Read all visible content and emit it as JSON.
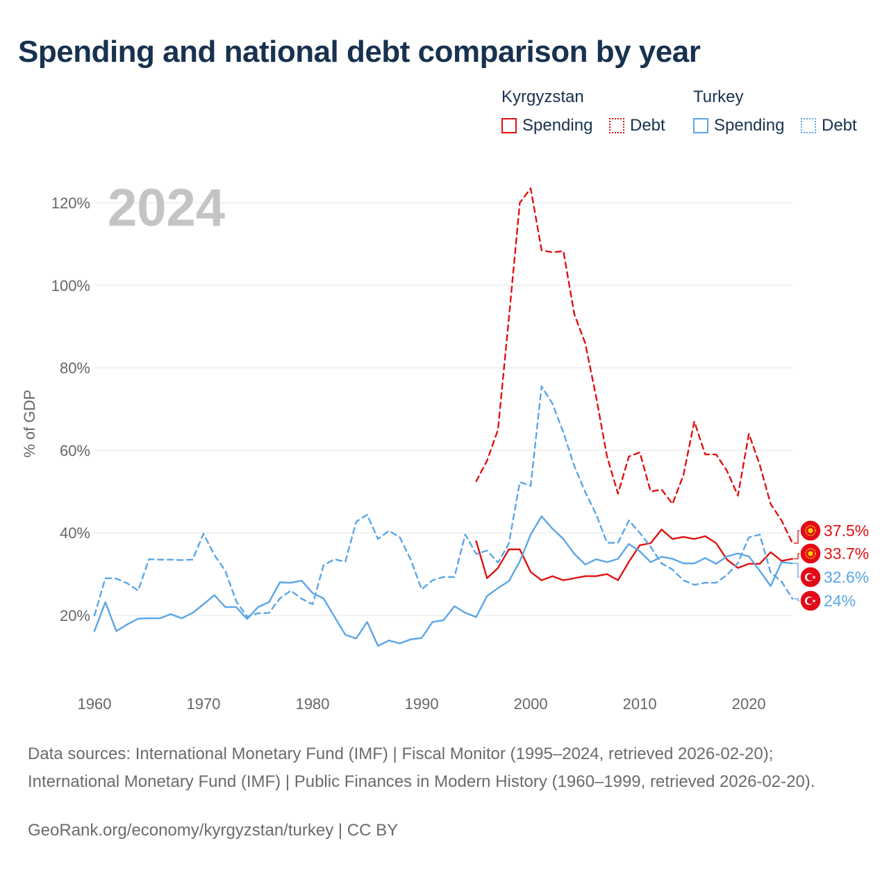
{
  "title": "Spending and national debt comparison by year",
  "legend": {
    "groups": [
      {
        "country": "Kyrgyzstan",
        "items": [
          {
            "label": "Spending",
            "color": "#e01010",
            "style": "solid"
          },
          {
            "label": "Debt",
            "color": "#e01010",
            "style": "dotted"
          }
        ]
      },
      {
        "country": "Turkey",
        "items": [
          {
            "label": "Spending",
            "color": "#5aa5e6",
            "style": "solid"
          },
          {
            "label": "Debt",
            "color": "#5aa5e6",
            "style": "dotted"
          }
        ]
      }
    ]
  },
  "footer": {
    "sources": "Data sources: International Monetary Fund (IMF) | Fiscal Monitor (1995–2024, retrieved 2026-02-20); International Monetary Fund (IMF) | Public Finances in Modern History (1960–1999, retrieved 2026-02-20).",
    "link": "GeoRank.org/economy/kyrgyzstan/turkey | CC BY"
  },
  "chart_data": {
    "type": "line",
    "year_watermark": "2024",
    "ylabel": "% of GDP",
    "xlim": [
      1960,
      2024
    ],
    "ylim": [
      5,
      125
    ],
    "x_ticks": [
      1960,
      1970,
      1980,
      1990,
      2000,
      2010,
      2020
    ],
    "y_ticks": [
      20,
      40,
      60,
      80,
      100,
      120
    ],
    "y_tick_labels": [
      "20%",
      "40%",
      "60%",
      "80%",
      "100%",
      "120%"
    ],
    "series": [
      {
        "name": "Kyrgyzstan Debt",
        "country": "Kyrgyzstan",
        "metric": "Debt",
        "color": "#e01010",
        "dash": true,
        "start_year": 1995,
        "values": [
          52.5,
          57.5,
          65,
          92,
          120,
          123.5,
          108.5,
          108,
          108.3,
          93,
          86,
          73,
          58.5,
          49.5,
          58.5,
          59.5,
          50,
          50.5,
          47,
          54,
          67,
          59,
          59,
          55,
          49,
          64,
          56.5,
          47,
          43,
          37.5
        ],
        "end_label": "37.5%",
        "flag": "kg"
      },
      {
        "name": "Kyrgyzstan Spending",
        "country": "Kyrgyzstan",
        "metric": "Spending",
        "color": "#e01010",
        "dash": false,
        "start_year": 1995,
        "values": [
          38,
          29,
          31.5,
          36,
          36,
          30.5,
          28.5,
          29.5,
          28.5,
          29,
          29.5,
          29.5,
          30,
          28.5,
          33,
          37,
          37.5,
          40.8,
          38.5,
          39,
          38.5,
          39.2,
          37.5,
          33.5,
          31.5,
          32.5,
          32.5,
          35.3,
          33.2,
          33.7
        ],
        "end_label": "33.7%",
        "flag": "kg"
      },
      {
        "name": "Turkey Spending",
        "country": "Turkey",
        "metric": "Spending",
        "color": "#5aa5e6",
        "dash": false,
        "start_year": 1960,
        "values": [
          16.2,
          23.2,
          16.2,
          17.8,
          19.2,
          19.3,
          19.3,
          20.3,
          19.3,
          20.6,
          22.7,
          24.9,
          22,
          22,
          19.1,
          22,
          23.2,
          28,
          27.9,
          28.4,
          25.4,
          24.1,
          19.7,
          15.3,
          14.4,
          18.4,
          12.6,
          13.9,
          13.2,
          14.2,
          14.5,
          18.4,
          18.8,
          22.2,
          20.6,
          19.6,
          24.7,
          26.6,
          28.3,
          33.1,
          39.6,
          44,
          41,
          38.5,
          34.9,
          32.3,
          33.6,
          32.9,
          33.7,
          37.3,
          35.5,
          32.9,
          34.2,
          33.7,
          32.6,
          32.6,
          33.9,
          32.5,
          34.3,
          35,
          34.3,
          30.8,
          27.1,
          32.9,
          32.6
        ],
        "end_label": "32.6%",
        "flag": "tr"
      },
      {
        "name": "Turkey Debt",
        "country": "Turkey",
        "metric": "Debt",
        "color": "#5aa5e6",
        "dash": true,
        "start_year": 1960,
        "values": [
          20,
          29,
          28.9,
          27.8,
          26,
          33.6,
          33.5,
          33.5,
          33.4,
          33.5,
          39.8,
          34.6,
          30.8,
          23.4,
          19.7,
          20.5,
          20.6,
          24.1,
          26,
          24,
          22.7,
          32.1,
          33.6,
          33,
          42.7,
          44.4,
          38.5,
          40.5,
          38.9,
          33.5,
          26.3,
          28.5,
          29.3,
          29.3,
          39.6,
          34.9,
          35.7,
          32.8,
          37.4,
          52.3,
          51.4,
          75.5,
          71.3,
          64.3,
          56.2,
          49.9,
          44.5,
          37.6,
          37.6,
          43,
          40,
          36.6,
          32.6,
          31.1,
          28.5,
          27.4,
          27.9,
          27.9,
          29.8,
          32.7,
          38.9,
          39.6,
          30.4,
          28.2,
          24
        ],
        "end_label": "24%",
        "flag": "tr"
      }
    ]
  }
}
